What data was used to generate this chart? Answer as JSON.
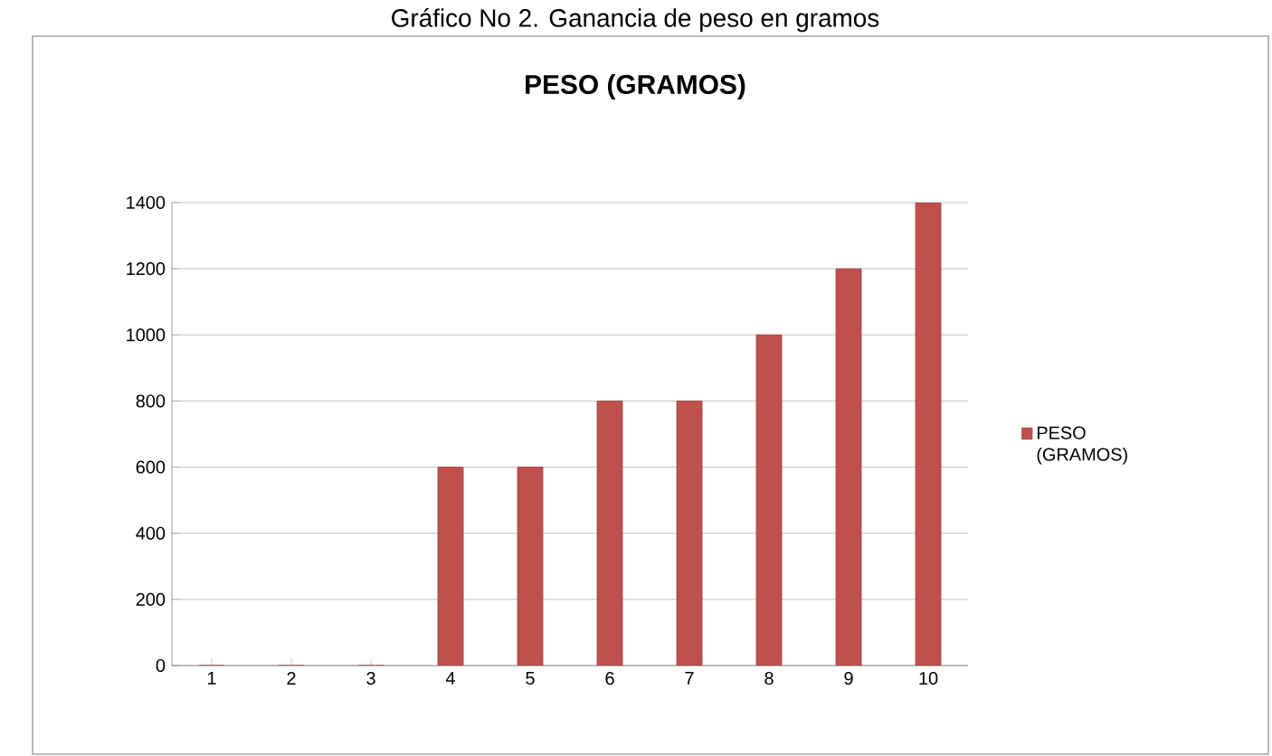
{
  "chart_data": {
    "type": "bar",
    "title": "Gráfico No 2. Ganancia de peso en gramos",
    "subtitle": "PESO (GRAMOS)",
    "categories": [
      "1",
      "2",
      "3",
      "4",
      "5",
      "6",
      "7",
      "8",
      "9",
      "10"
    ],
    "series": [
      {
        "name": "PESO (GRAMOS)",
        "color": "#c0504d",
        "values": [
          0,
          0,
          0,
          600,
          600,
          800,
          800,
          1000,
          1200,
          1400
        ]
      }
    ],
    "ylim": [
      0,
      1400
    ],
    "yticks": [
      0,
      200,
      400,
      600,
      800,
      1000,
      1200,
      1400
    ],
    "grid": "y",
    "legend": "right"
  }
}
